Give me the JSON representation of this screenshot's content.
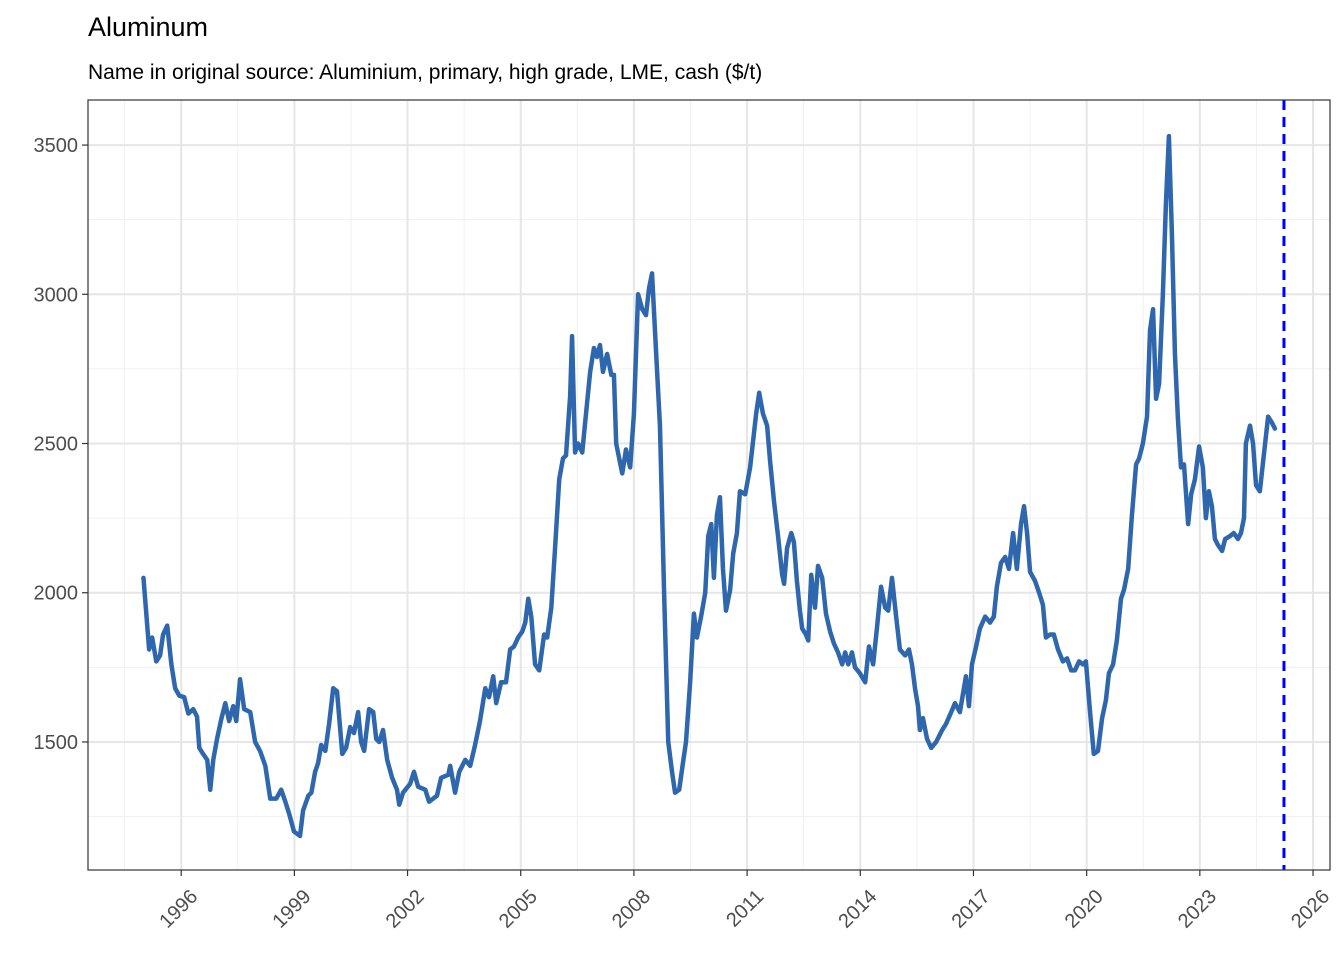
{
  "chart_data": {
    "type": "line",
    "title": "Aluminum",
    "subtitle": "Name in original source: Aluminium, primary, high grade, LME, cash ($/t)",
    "xlim": [
      1993.53,
      2026.45
    ],
    "ylim": [
      1071,
      3651
    ],
    "xticks": [
      1996,
      1999,
      2002,
      2005,
      2008,
      2011,
      2014,
      2017,
      2020,
      2023,
      2026
    ],
    "yticks": [
      1500,
      2000,
      2500,
      3000,
      3500
    ],
    "xminor": [
      1994.5,
      1997.5,
      2000.5,
      2003.5,
      2006.5,
      2009.5,
      2012.5,
      2015.5,
      2018.5,
      2021.5,
      2024.5
    ],
    "yminor": [
      1250,
      1750,
      2250,
      2750,
      3250
    ],
    "grid": true,
    "vline": {
      "x": 2025.23,
      "color": "#0000ff"
    },
    "x": [
      1995.0,
      1995.15,
      1995.23,
      1995.34,
      1995.44,
      1995.52,
      1995.63,
      1995.74,
      1995.84,
      1995.95,
      1996.08,
      1996.19,
      1996.32,
      1996.42,
      1996.48,
      1996.58,
      1996.69,
      1996.77,
      1996.85,
      1996.95,
      1997.06,
      1997.17,
      1997.27,
      1997.38,
      1997.46,
      1997.56,
      1997.67,
      1997.83,
      1997.96,
      1998.09,
      1998.23,
      1998.36,
      1998.52,
      1998.65,
      1998.76,
      1998.86,
      1998.99,
      1999.15,
      1999.23,
      1999.37,
      1999.45,
      1999.55,
      1999.63,
      1999.71,
      1999.82,
      1999.92,
      2000.03,
      2000.13,
      2000.27,
      2000.37,
      2000.48,
      2000.58,
      2000.69,
      2000.77,
      2000.85,
      2000.98,
      2001.09,
      2001.17,
      2001.25,
      2001.35,
      2001.46,
      2001.59,
      2001.72,
      2001.78,
      2001.88,
      2002.07,
      2002.17,
      2002.28,
      2002.47,
      2002.57,
      2002.78,
      2002.89,
      2003.08,
      2003.13,
      2003.26,
      2003.37,
      2003.53,
      2003.66,
      2003.79,
      2003.92,
      2004.06,
      2004.16,
      2004.27,
      2004.35,
      2004.48,
      2004.61,
      2004.72,
      2004.82,
      2004.93,
      2005.04,
      2005.12,
      2005.2,
      2005.28,
      2005.38,
      2005.49,
      2005.62,
      2005.7,
      2005.81,
      2005.91,
      2006.02,
      2006.12,
      2006.2,
      2006.31,
      2006.36,
      2006.44,
      2006.52,
      2006.63,
      2006.73,
      2006.84,
      2006.94,
      2007.02,
      2007.1,
      2007.18,
      2007.29,
      2007.4,
      2007.47,
      2007.53,
      2007.69,
      2007.79,
      2007.9,
      2008.0,
      2008.11,
      2008.22,
      2008.32,
      2008.4,
      2008.48,
      2008.59,
      2008.69,
      2008.8,
      2008.91,
      2009.01,
      2009.09,
      2009.2,
      2009.3,
      2009.38,
      2009.49,
      2009.59,
      2009.67,
      2009.78,
      2009.89,
      2009.97,
      2010.05,
      2010.12,
      2010.2,
      2010.28,
      2010.36,
      2010.44,
      2010.55,
      2010.63,
      2010.73,
      2010.81,
      2010.95,
      2011.08,
      2011.24,
      2011.32,
      2011.42,
      2011.53,
      2011.61,
      2011.71,
      2011.82,
      2011.93,
      2011.98,
      2012.06,
      2012.17,
      2012.24,
      2012.32,
      2012.4,
      2012.46,
      2012.56,
      2012.62,
      2012.7,
      2012.8,
      2012.88,
      2012.99,
      2013.09,
      2013.2,
      2013.3,
      2013.41,
      2013.52,
      2013.6,
      2013.68,
      2013.78,
      2013.86,
      2013.99,
      2014.13,
      2014.23,
      2014.34,
      2014.44,
      2014.55,
      2014.66,
      2014.74,
      2014.84,
      2014.95,
      2015.05,
      2015.19,
      2015.29,
      2015.37,
      2015.45,
      2015.53,
      2015.58,
      2015.66,
      2015.77,
      2015.88,
      2016.01,
      2016.17,
      2016.27,
      2016.41,
      2016.51,
      2016.64,
      2016.72,
      2016.8,
      2016.88,
      2016.96,
      2017.07,
      2017.17,
      2017.31,
      2017.44,
      2017.54,
      2017.62,
      2017.73,
      2017.84,
      2017.94,
      2018.05,
      2018.15,
      2018.26,
      2018.34,
      2018.42,
      2018.5,
      2018.63,
      2018.74,
      2018.84,
      2018.92,
      2019.03,
      2019.13,
      2019.24,
      2019.37,
      2019.48,
      2019.59,
      2019.69,
      2019.8,
      2019.9,
      2019.98,
      2020.09,
      2020.19,
      2020.3,
      2020.41,
      2020.51,
      2020.59,
      2020.7,
      2020.8,
      2020.91,
      2020.99,
      2021.1,
      2021.2,
      2021.31,
      2021.39,
      2021.49,
      2021.6,
      2021.68,
      2021.76,
      2021.84,
      2021.92,
      2022.02,
      2022.1,
      2022.18,
      2022.26,
      2022.34,
      2022.42,
      2022.5,
      2022.58,
      2022.69,
      2022.77,
      2022.87,
      2022.98,
      2023.08,
      2023.16,
      2023.24,
      2023.32,
      2023.4,
      2023.48,
      2023.59,
      2023.67,
      2023.8,
      2023.9,
      2024.01,
      2024.09,
      2024.17,
      2024.22,
      2024.33,
      2024.41,
      2024.49,
      2024.59,
      2024.73,
      2024.81,
      2024.91,
      2024.99
    ],
    "series": [
      {
        "color": "#2e67ad",
        "values": [
          2050,
          1810,
          1850,
          1770,
          1790,
          1860,
          1890,
          1760,
          1680,
          1655,
          1650,
          1595,
          1610,
          1585,
          1480,
          1460,
          1440,
          1340,
          1440,
          1510,
          1575,
          1630,
          1570,
          1620,
          1570,
          1710,
          1610,
          1600,
          1500,
          1470,
          1420,
          1310,
          1310,
          1340,
          1300,
          1260,
          1200,
          1185,
          1270,
          1320,
          1330,
          1400,
          1430,
          1490,
          1470,
          1560,
          1680,
          1670,
          1460,
          1480,
          1550,
          1530,
          1600,
          1500,
          1470,
          1610,
          1600,
          1510,
          1500,
          1540,
          1440,
          1380,
          1340,
          1290,
          1330,
          1360,
          1400,
          1350,
          1340,
          1300,
          1320,
          1380,
          1390,
          1420,
          1330,
          1400,
          1440,
          1420,
          1490,
          1570,
          1680,
          1650,
          1720,
          1630,
          1700,
          1700,
          1810,
          1820,
          1850,
          1870,
          1900,
          1980,
          1920,
          1760,
          1740,
          1860,
          1850,
          1950,
          2150,
          2380,
          2450,
          2460,
          2660,
          2860,
          2470,
          2500,
          2470,
          2600,
          2740,
          2820,
          2790,
          2830,
          2740,
          2800,
          2730,
          2730,
          2500,
          2400,
          2480,
          2420,
          2600,
          3000,
          2950,
          2930,
          3020,
          3070,
          2800,
          2560,
          2000,
          1500,
          1400,
          1330,
          1340,
          1430,
          1500,
          1700,
          1930,
          1850,
          1920,
          2000,
          2190,
          2230,
          2050,
          2260,
          2320,
          2080,
          1940,
          2010,
          2130,
          2200,
          2340,
          2330,
          2420,
          2600,
          2670,
          2600,
          2560,
          2440,
          2310,
          2190,
          2060,
          2030,
          2150,
          2200,
          2170,
          2040,
          1940,
          1880,
          1860,
          1840,
          2060,
          1950,
          2090,
          2050,
          1930,
          1870,
          1830,
          1800,
          1760,
          1800,
          1760,
          1800,
          1750,
          1730,
          1700,
          1820,
          1760,
          1880,
          2020,
          1950,
          1940,
          2050,
          1920,
          1810,
          1790,
          1810,
          1760,
          1680,
          1620,
          1540,
          1580,
          1510,
          1480,
          1500,
          1540,
          1560,
          1600,
          1630,
          1600,
          1660,
          1720,
          1620,
          1760,
          1820,
          1880,
          1920,
          1900,
          1920,
          2020,
          2100,
          2120,
          2080,
          2200,
          2080,
          2230,
          2290,
          2200,
          2070,
          2040,
          2000,
          1960,
          1850,
          1860,
          1860,
          1810,
          1770,
          1780,
          1740,
          1740,
          1770,
          1760,
          1770,
          1600,
          1460,
          1470,
          1580,
          1640,
          1730,
          1760,
          1840,
          1980,
          2010,
          2080,
          2260,
          2430,
          2450,
          2500,
          2590,
          2880,
          2950,
          2650,
          2700,
          3000,
          3300,
          3530,
          3200,
          2800,
          2580,
          2420,
          2430,
          2230,
          2330,
          2380,
          2490,
          2420,
          2250,
          2340,
          2290,
          2180,
          2160,
          2140,
          2180,
          2190,
          2200,
          2180,
          2200,
          2250,
          2500,
          2560,
          2500,
          2360,
          2340,
          2500,
          2590,
          2570,
          2550
        ]
      }
    ]
  }
}
